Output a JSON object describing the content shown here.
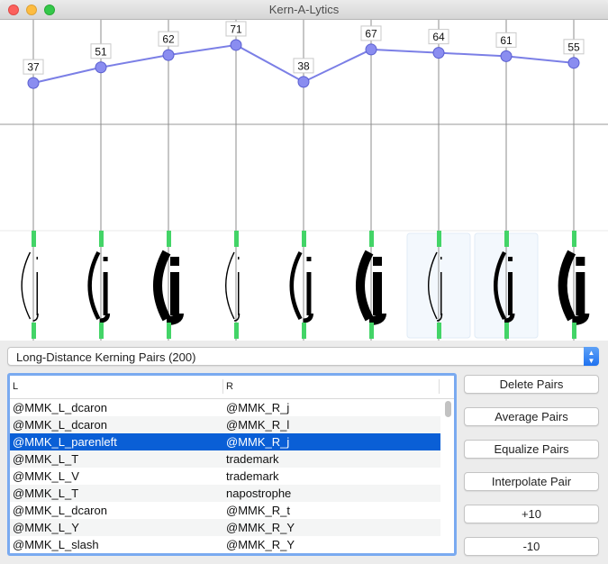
{
  "window": {
    "title": "Kern-A-Lytics"
  },
  "chart_data": {
    "type": "line",
    "values": [
      37,
      51,
      62,
      71,
      38,
      67,
      64,
      61,
      55
    ],
    "highlighted_columns": [
      6,
      7
    ],
    "line_color": "#7b7fe6",
    "point_color": "#8a8df0",
    "marker_color": "#43d467"
  },
  "popup": {
    "label": "Long-Distance Kerning Pairs (200)"
  },
  "table": {
    "headers": {
      "left": "L",
      "right": "R"
    },
    "selected_index": 2,
    "rows": [
      {
        "l": "@MMK_L_dcaron",
        "r": "@MMK_R_j"
      },
      {
        "l": "@MMK_L_dcaron",
        "r": "@MMK_R_l"
      },
      {
        "l": "@MMK_L_parenleft",
        "r": "@MMK_R_j"
      },
      {
        "l": "@MMK_L_T",
        "r": "trademark"
      },
      {
        "l": "@MMK_L_V",
        "r": "trademark"
      },
      {
        "l": "@MMK_L_T",
        "r": "napostrophe"
      },
      {
        "l": "@MMK_L_dcaron",
        "r": "@MMK_R_t"
      },
      {
        "l": "@MMK_L_Y",
        "r": "@MMK_R_Y"
      },
      {
        "l": "@MMK_L_slash",
        "r": "@MMK_R_Y"
      }
    ]
  },
  "buttons": {
    "delete": "Delete Pairs",
    "average": "Average Pairs",
    "equalize": "Equalize Pairs",
    "interpolate": "Interpolate Pair",
    "plus": "+10",
    "minus": "-10"
  }
}
